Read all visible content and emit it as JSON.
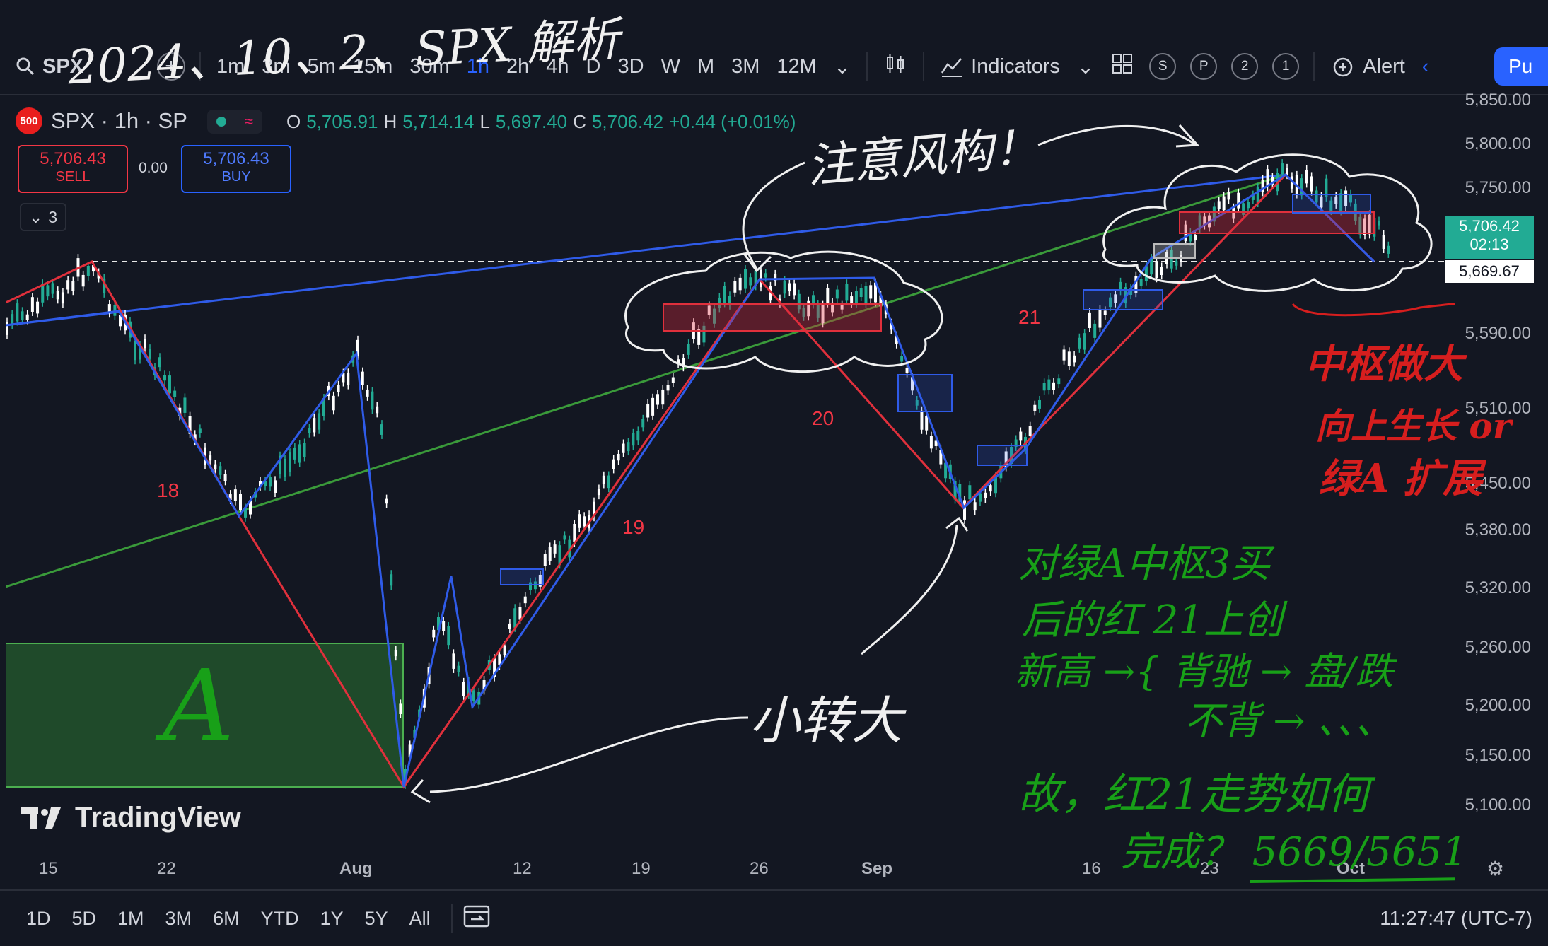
{
  "annotation_title": "2024、10、2、SPX 解析",
  "toolbar": {
    "symbol": "SPX",
    "intervals": [
      "1m",
      "3m",
      "5m",
      "15m",
      "30m",
      "1h",
      "2h",
      "4h",
      "D",
      "3D",
      "W",
      "M",
      "3M",
      "12M"
    ],
    "active_interval": "1h",
    "indicators_label": "Indicators",
    "circles": [
      "S",
      "P",
      "2",
      "1"
    ],
    "alert_label": "Alert",
    "publish_label": "Pu"
  },
  "legend": {
    "badge": "500",
    "title": "SPX · 1h · SP",
    "o_label": "O",
    "o": "5,705.91",
    "h_label": "H",
    "h": "5,714.14",
    "l_label": "L",
    "l": "5,697.40",
    "c_label": "C",
    "c": "5,706.42",
    "change": "+0.44 (+0.01%)"
  },
  "trade": {
    "sell_price": "5,706.43",
    "sell_label": "SELL",
    "spread": "0.00",
    "buy_price": "5,706.43",
    "buy_label": "BUY",
    "layers_count": "3"
  },
  "price_axis": {
    "ticks": [
      "5,850.00",
      "5,800.00",
      "5,750.00",
      "5,590.00",
      "5,510.00",
      "5,450.00",
      "5,380.00",
      "5,320.00",
      "5,260.00",
      "5,200.00",
      "5,150.00",
      "5,100.00"
    ],
    "last_price": "5,706.42",
    "countdown": "02:13",
    "line_price": "5,669.67"
  },
  "time_axis": [
    "15",
    "22",
    "Aug",
    "12",
    "19",
    "26",
    "Sep",
    "16",
    "23",
    "Oct"
  ],
  "segment_labels": [
    "18",
    "19",
    "20",
    "21"
  ],
  "zone_label": "A",
  "brand": "TradingView",
  "range_buttons": [
    "1D",
    "5D",
    "1M",
    "3M",
    "6M",
    "YTD",
    "1Y",
    "5Y",
    "All"
  ],
  "clock": "11:27:47 (UTC-7)",
  "notes": {
    "caution": "注意风构！",
    "small_to_big": "小转大",
    "red_1": "中枢做大",
    "red_2": "向上生长 or",
    "red_3": "绿A 扩展",
    "green_1": "对绿A中枢3买",
    "green_2": "后的红 21上创",
    "green_3": "新高 →{ 背驰 → 盘/跌",
    "green_4": "不背 → 、、、",
    "green_5": "故，红21走势如何",
    "green_6": "完成？ 5669/5651"
  },
  "colors": {
    "background": "#131722",
    "down_seg": "#e0303c",
    "up_seg": "#2f5be8",
    "trend_green": "#3a9a3a",
    "candle_up": "#22ab94",
    "candle_down": "#ffffff",
    "zone_fill": "#1f4a2a"
  }
}
